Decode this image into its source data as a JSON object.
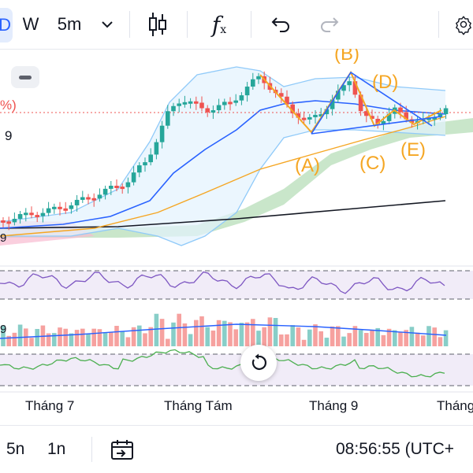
{
  "toolbar": {
    "first_tab_glyph": "D",
    "symbol_letter": "W",
    "interval": "5m",
    "icons": [
      "chevron-down-icon",
      "candlestick-icon",
      "indicators-fx-icon",
      "undo-icon",
      "redo-icon",
      "settings-gear-icon"
    ],
    "fx_label": "f",
    "fx_sub": "x"
  },
  "chart": {
    "left_labels": {
      "pct": "%)",
      "nine": "9",
      "pane_nine_a": "9",
      "pane_nine_b": "9"
    },
    "wave_labels": [
      "(A)",
      "(B)",
      "(C)",
      "(D)",
      "(E)"
    ],
    "colors": {
      "up": "#26a69a",
      "down": "#ef5350",
      "bb_fill": "#e3f2fd",
      "bb_line": "#90caf9",
      "ma_fast": "#2962ff",
      "ma_slow": "#f5a623",
      "ma_long": "#131722",
      "cloud": "#a5d6a7",
      "wave": "#f5a623",
      "rsi": "#7e57c2",
      "osc": "#4caf50"
    }
  },
  "x_axis": {
    "labels": [
      "Tháng 7",
      "Tháng Tám",
      "Tháng 9",
      "Tháng"
    ]
  },
  "bottom": {
    "range_buttons": [
      "5n",
      "1n"
    ],
    "date_range_icon": "calendar-goto-icon",
    "clock": "08:56:55",
    "timezone": "(UTC+"
  }
}
